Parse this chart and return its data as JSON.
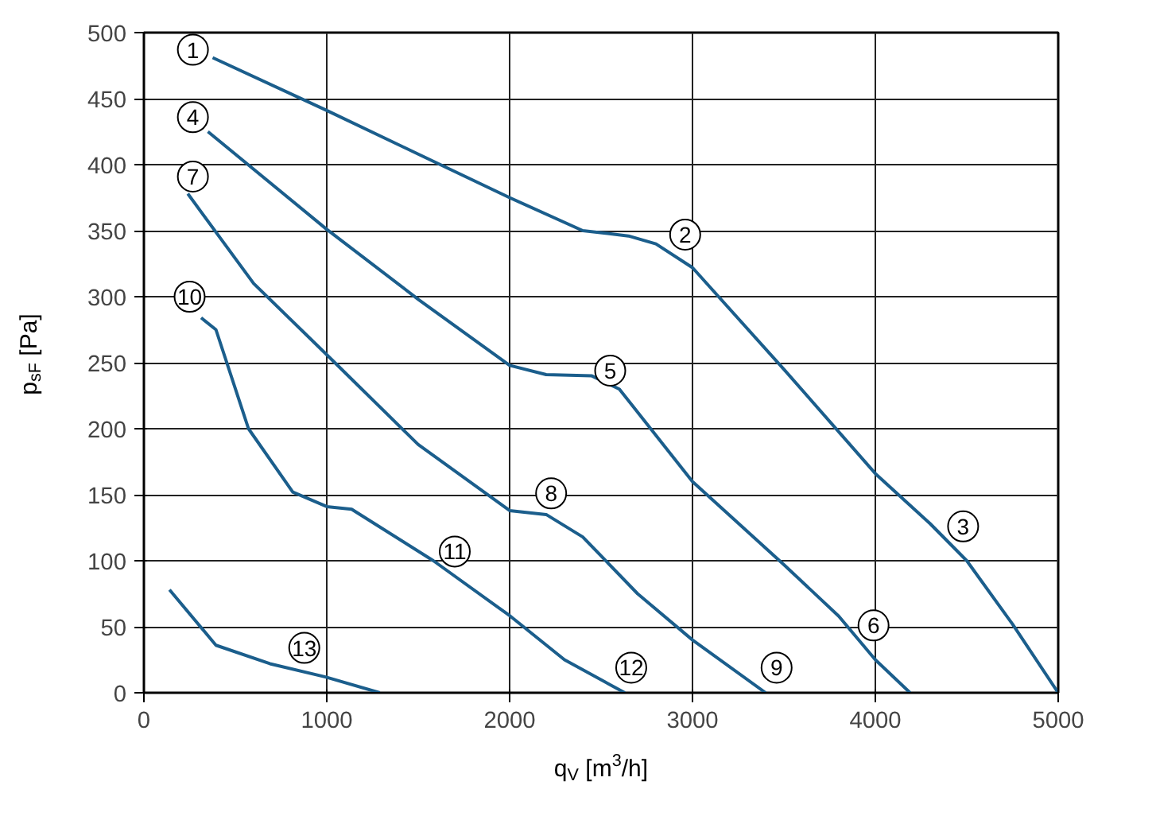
{
  "chart_data": {
    "type": "line",
    "xlabel": "q$_{V}$ [m$^{3}$/h]",
    "ylabel": "p$_{sF}$ [Pa]",
    "xlim": [
      0,
      5000
    ],
    "ylim": [
      0,
      500
    ],
    "xticks": [
      0,
      1000,
      2000,
      3000,
      4000,
      5000
    ],
    "yticks": [
      0,
      50,
      100,
      150,
      200,
      250,
      300,
      350,
      400,
      450,
      500
    ],
    "grid": true,
    "marker": "none",
    "line_style": "solid",
    "series": [
      {
        "color": "#1b5e8c",
        "x": [
          376,
          1000,
          1500,
          2000,
          2400,
          2650,
          2800,
          3000,
          3500,
          4000,
          4300,
          4500,
          4750,
          5000
        ],
        "values": [
          481,
          441,
          408,
          375,
          350,
          346,
          340,
          322,
          245,
          166,
          128,
          100,
          52,
          0
        ]
      },
      {
        "color": "#1b5e8c",
        "x": [
          350,
          1000,
          1500,
          2000,
          2200,
          2450,
          2600,
          3000,
          3500,
          3800,
          4000,
          4190
        ],
        "values": [
          425,
          351,
          298,
          248,
          241,
          240,
          230,
          160,
          97,
          58,
          25,
          0
        ]
      },
      {
        "color": "#1b5e8c",
        "x": [
          240,
          600,
          1000,
          1500,
          2000,
          2200,
          2400,
          2700,
          3000,
          3400
        ],
        "values": [
          378,
          310,
          256,
          188,
          138,
          135,
          118,
          75,
          40,
          0
        ]
      },
      {
        "color": "#1b5e8c",
        "x": [
          313,
          394,
          572,
          814,
          1000,
          1136,
          1583,
          2004,
          2300,
          2630
        ],
        "values": [
          284,
          275,
          200,
          152,
          141,
          139,
          100,
          58,
          25,
          0
        ]
      },
      {
        "color": "#1b5e8c",
        "x": [
          140,
          394,
          689,
          993,
          1290
        ],
        "values": [
          78,
          36,
          22,
          12,
          0
        ]
      }
    ],
    "annotations": [
      {
        "text": "1",
        "x": 268,
        "y": 487
      },
      {
        "text": "2",
        "x": 2960,
        "y": 347
      },
      {
        "text": "3",
        "x": 4480,
        "y": 126
      },
      {
        "text": "4",
        "x": 268,
        "y": 436
      },
      {
        "text": "5",
        "x": 2550,
        "y": 244
      },
      {
        "text": "6",
        "x": 3990,
        "y": 51
      },
      {
        "text": "7",
        "x": 268,
        "y": 391
      },
      {
        "text": "8",
        "x": 2227,
        "y": 151
      },
      {
        "text": "9",
        "x": 3460,
        "y": 19
      },
      {
        "text": "10",
        "x": 250,
        "y": 300
      },
      {
        "text": "11",
        "x": 1700,
        "y": 107
      },
      {
        "text": "12",
        "x": 2665,
        "y": 19
      },
      {
        "text": "13",
        "x": 877,
        "y": 34
      }
    ]
  }
}
